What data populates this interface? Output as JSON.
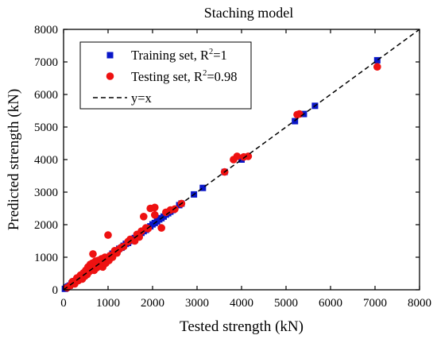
{
  "chart_data": {
    "type": "scatter",
    "title": "Staching model",
    "xlabel": "Tested strength (kN)",
    "ylabel": "Predicted strength (kN)",
    "xlim": [
      0,
      8000
    ],
    "ylim": [
      0,
      8000
    ],
    "x_ticks": [
      "0",
      "1000",
      "2000",
      "3000",
      "4000",
      "5000",
      "6000",
      "7000",
      "8000"
    ],
    "y_ticks": [
      "0",
      "1000",
      "2000",
      "3000",
      "4000",
      "5000",
      "6000",
      "7000",
      "8000"
    ],
    "grid": false,
    "legend_position": "top-left",
    "legend": [
      {
        "text": "Training set, R",
        "sup": "2",
        "after": "=1"
      },
      {
        "text": "Testing set, R",
        "sup": "2",
        "after": "=0.98"
      },
      {
        "text": "y=x",
        "sup": "",
        "after": ""
      }
    ],
    "colors": {
      "training": "#0a17c8",
      "testing": "#ee1111",
      "reference": "#000000"
    },
    "series": [
      {
        "name": "Training set",
        "marker": "square",
        "color": "#0a17c8",
        "points": [
          [
            30,
            30
          ],
          [
            60,
            70
          ],
          [
            100,
            100
          ],
          [
            140,
            130
          ],
          [
            180,
            190
          ],
          [
            220,
            210
          ],
          [
            260,
            270
          ],
          [
            300,
            300
          ],
          [
            350,
            340
          ],
          [
            400,
            410
          ],
          [
            450,
            440
          ],
          [
            500,
            500
          ],
          [
            550,
            560
          ],
          [
            600,
            590
          ],
          [
            650,
            660
          ],
          [
            700,
            700
          ],
          [
            750,
            740
          ],
          [
            800,
            810
          ],
          [
            850,
            850
          ],
          [
            900,
            900
          ],
          [
            950,
            960
          ],
          [
            1000,
            1000
          ],
          [
            1050,
            1040
          ],
          [
            1100,
            1110
          ],
          [
            1150,
            1150
          ],
          [
            1200,
            1200
          ],
          [
            1250,
            1260
          ],
          [
            1300,
            1290
          ],
          [
            1350,
            1350
          ],
          [
            1400,
            1410
          ],
          [
            1450,
            1440
          ],
          [
            1500,
            1500
          ],
          [
            1550,
            1560
          ],
          [
            1600,
            1590
          ],
          [
            1650,
            1650
          ],
          [
            1700,
            1710
          ],
          [
            1750,
            1750
          ],
          [
            1800,
            1800
          ],
          [
            1850,
            1840
          ],
          [
            1900,
            1910
          ],
          [
            1950,
            1950
          ],
          [
            2000,
            2010
          ],
          [
            2050,
            2050
          ],
          [
            2100,
            2100
          ],
          [
            2150,
            2160
          ],
          [
            2200,
            2200
          ],
          [
            2250,
            2250
          ],
          [
            2300,
            2310
          ],
          [
            2350,
            2350
          ],
          [
            2400,
            2400
          ],
          [
            2450,
            2450
          ],
          [
            2600,
            2600
          ],
          [
            2650,
            2650
          ],
          [
            2930,
            2930
          ],
          [
            3130,
            3130
          ],
          [
            3620,
            3620
          ],
          [
            4000,
            4000
          ],
          [
            5200,
            5180
          ],
          [
            5400,
            5400
          ],
          [
            5650,
            5650
          ],
          [
            7050,
            7050
          ]
        ]
      },
      {
        "name": "Testing set",
        "marker": "circle",
        "color": "#ee1111",
        "points": [
          [
            80,
            60
          ],
          [
            150,
            130
          ],
          [
            200,
            250
          ],
          [
            250,
            180
          ],
          [
            300,
            360
          ],
          [
            330,
            280
          ],
          [
            380,
            450
          ],
          [
            420,
            330
          ],
          [
            450,
            520
          ],
          [
            480,
            420
          ],
          [
            500,
            600
          ],
          [
            530,
            470
          ],
          [
            550,
            700
          ],
          [
            580,
            560
          ],
          [
            600,
            780
          ],
          [
            620,
            650
          ],
          [
            650,
            820
          ],
          [
            660,
            1100
          ],
          [
            690,
            600
          ],
          [
            700,
            760
          ],
          [
            720,
            880
          ],
          [
            750,
            680
          ],
          [
            780,
            900
          ],
          [
            800,
            750
          ],
          [
            830,
            820
          ],
          [
            850,
            950
          ],
          [
            880,
            700
          ],
          [
            900,
            880
          ],
          [
            930,
            1000
          ],
          [
            950,
            820
          ],
          [
            1000,
            1680
          ],
          [
            1020,
            900
          ],
          [
            1050,
            1050
          ],
          [
            1100,
            1000
          ],
          [
            1150,
            1200
          ],
          [
            1200,
            1130
          ],
          [
            1250,
            1250
          ],
          [
            1300,
            1300
          ],
          [
            1350,
            1330
          ],
          [
            1450,
            1480
          ],
          [
            1500,
            1550
          ],
          [
            1600,
            1500
          ],
          [
            1650,
            1700
          ],
          [
            1700,
            1620
          ],
          [
            1750,
            1800
          ],
          [
            1800,
            2250
          ],
          [
            1850,
            1900
          ],
          [
            1900,
            1880
          ],
          [
            1950,
            2500
          ],
          [
            2050,
            2530
          ],
          [
            2050,
            2300
          ],
          [
            2200,
            1900
          ],
          [
            2300,
            2380
          ],
          [
            2400,
            2450
          ],
          [
            2500,
            2480
          ],
          [
            2650,
            2650
          ],
          [
            3620,
            3620
          ],
          [
            3820,
            4000
          ],
          [
            3900,
            4100
          ],
          [
            4050,
            4080
          ],
          [
            4150,
            4100
          ],
          [
            5250,
            5380
          ],
          [
            5300,
            5400
          ],
          [
            7050,
            6850
          ]
        ]
      }
    ],
    "reference_line": {
      "name": "y=x",
      "style": "dashed",
      "points": [
        [
          0,
          0
        ],
        [
          8000,
          8000
        ]
      ]
    }
  }
}
